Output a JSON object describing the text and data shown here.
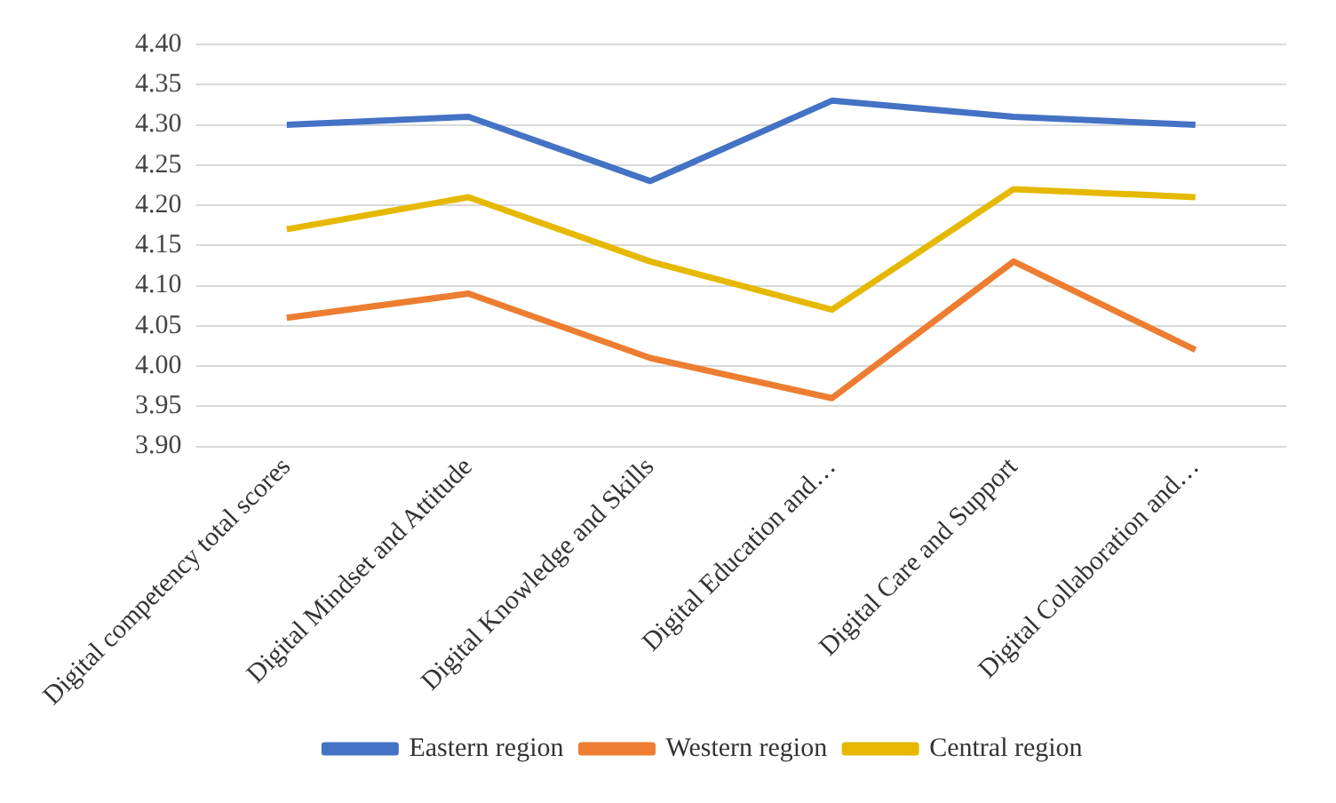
{
  "chart_data": {
    "type": "line",
    "categories": [
      "Digital competency total scores",
      "Digital Mindset and Attitude",
      "Digital Knowledge and Skills",
      "Digital Education and…",
      "Digital Care and Support",
      "Digital Collaboration and…"
    ],
    "series": [
      {
        "name": "Eastern region",
        "color": "#4472c4",
        "values": [
          4.3,
          4.31,
          4.23,
          4.33,
          4.31,
          4.3
        ]
      },
      {
        "name": "Western region",
        "color": "#ed7d31",
        "values": [
          4.06,
          4.09,
          4.01,
          3.96,
          4.13,
          4.02
        ]
      },
      {
        "name": "Central region",
        "color": "#e6b800",
        "values": [
          4.17,
          4.21,
          4.13,
          4.07,
          4.22,
          4.21
        ]
      }
    ],
    "ylim": [
      3.9,
      4.4
    ],
    "yticks": [
      {
        "value": 3.9,
        "label": "3.90"
      },
      {
        "value": 3.95,
        "label": "3.95"
      },
      {
        "value": 4.0,
        "label": "4.00"
      },
      {
        "value": 4.05,
        "label": "4.05"
      },
      {
        "value": 4.1,
        "label": "4.10"
      },
      {
        "value": 4.15,
        "label": "4.15"
      },
      {
        "value": 4.2,
        "label": "4.20"
      },
      {
        "value": 4.25,
        "label": "4.25"
      },
      {
        "value": 4.3,
        "label": "4.30"
      },
      {
        "value": 4.35,
        "label": "4.35"
      },
      {
        "value": 4.4,
        "label": "4.40"
      }
    ],
    "grid": "y",
    "legend": "bottom",
    "marker": "none",
    "line_style": "solid"
  }
}
